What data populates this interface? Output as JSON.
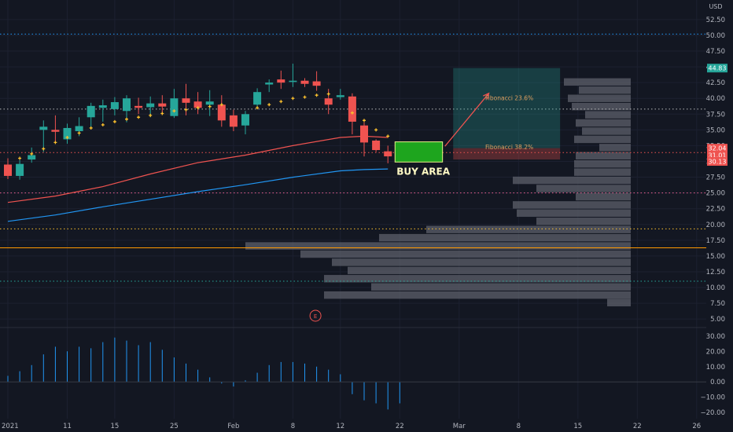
{
  "chart_data": {
    "type": "candlestick",
    "currency_label": "USD",
    "price_axis": {
      "range": [
        3.9,
        55.6
      ],
      "ticks": [
        "52.50",
        "50.00",
        "47.50",
        "45.00",
        "42.50",
        "40.00",
        "37.50",
        "35.00",
        "32.50",
        "30.00",
        "27.50",
        "25.00",
        "22.50",
        "20.00",
        "17.50",
        "15.00",
        "12.50",
        "10.00",
        "7.50",
        "5.00"
      ]
    },
    "time_axis": {
      "labels": [
        {
          "t": 0,
          "label": "2021"
        },
        {
          "t": 5,
          "label": "11"
        },
        {
          "t": 9,
          "label": "15"
        },
        {
          "t": 14,
          "label": "25"
        },
        {
          "t": 19,
          "label": "Feb"
        },
        {
          "t": 24,
          "label": "8"
        },
        {
          "t": 28,
          "label": "12"
        },
        {
          "t": 33,
          "label": "22"
        },
        {
          "t": 38,
          "label": "Mar"
        },
        {
          "t": 43,
          "label": "8"
        },
        {
          "t": 48,
          "label": "15"
        },
        {
          "t": 53,
          "label": "22"
        },
        {
          "t": 58,
          "label": "26"
        }
      ]
    },
    "candles": [
      {
        "t": 0,
        "o": 29.5,
        "h": 30.5,
        "l": 27.2,
        "c": 27.7
      },
      {
        "t": 1,
        "o": 27.7,
        "h": 30.2,
        "l": 27.1,
        "c": 29.6
      },
      {
        "t": 2,
        "o": 30.3,
        "h": 32.2,
        "l": 29.8,
        "c": 31.0
      },
      {
        "t": 3,
        "o": 35.0,
        "h": 36.5,
        "l": 31.5,
        "c": 35.5
      },
      {
        "t": 4,
        "o": 35.0,
        "h": 37.3,
        "l": 33.0,
        "c": 34.7
      },
      {
        "t": 5,
        "o": 33.5,
        "h": 36.0,
        "l": 32.8,
        "c": 35.3
      },
      {
        "t": 6,
        "o": 34.8,
        "h": 37.0,
        "l": 34.0,
        "c": 35.6
      },
      {
        "t": 7,
        "o": 37.0,
        "h": 39.3,
        "l": 35.2,
        "c": 38.8
      },
      {
        "t": 8,
        "o": 38.5,
        "h": 39.8,
        "l": 36.3,
        "c": 38.9
      },
      {
        "t": 9,
        "o": 38.3,
        "h": 40.2,
        "l": 37.3,
        "c": 39.4
      },
      {
        "t": 10,
        "o": 38.0,
        "h": 40.5,
        "l": 36.2,
        "c": 40.0
      },
      {
        "t": 11,
        "o": 38.8,
        "h": 40.1,
        "l": 37.5,
        "c": 38.5
      },
      {
        "t": 12,
        "o": 38.6,
        "h": 40.3,
        "l": 37.0,
        "c": 39.2
      },
      {
        "t": 13,
        "o": 39.2,
        "h": 40.5,
        "l": 37.4,
        "c": 38.7
      },
      {
        "t": 14,
        "o": 37.2,
        "h": 41.5,
        "l": 36.9,
        "c": 40.0
      },
      {
        "t": 15,
        "o": 40.0,
        "h": 42.3,
        "l": 37.3,
        "c": 39.3
      },
      {
        "t": 16,
        "o": 39.5,
        "h": 41.0,
        "l": 37.5,
        "c": 38.5
      },
      {
        "t": 17,
        "o": 39.0,
        "h": 41.3,
        "l": 37.2,
        "c": 39.5
      },
      {
        "t": 18,
        "o": 39.0,
        "h": 40.5,
        "l": 35.5,
        "c": 36.5
      },
      {
        "t": 19,
        "o": 37.3,
        "h": 38.2,
        "l": 34.8,
        "c": 35.5
      },
      {
        "t": 20,
        "o": 35.7,
        "h": 38.0,
        "l": 34.3,
        "c": 37.5
      },
      {
        "t": 21,
        "o": 39.0,
        "h": 41.6,
        "l": 38.4,
        "c": 41.0
      },
      {
        "t": 22,
        "o": 42.2,
        "h": 43.0,
        "l": 41.0,
        "c": 42.5
      },
      {
        "t": 23,
        "o": 43.0,
        "h": 44.4,
        "l": 41.5,
        "c": 42.5
      },
      {
        "t": 24,
        "o": 42.6,
        "h": 45.5,
        "l": 41.8,
        "c": 42.8
      },
      {
        "t": 25,
        "o": 42.8,
        "h": 43.2,
        "l": 41.8,
        "c": 42.3
      },
      {
        "t": 26,
        "o": 42.7,
        "h": 44.3,
        "l": 41.2,
        "c": 42.0
      },
      {
        "t": 27,
        "o": 40.0,
        "h": 41.5,
        "l": 37.5,
        "c": 39.0
      },
      {
        "t": 28,
        "o": 40.2,
        "h": 41.5,
        "l": 39.8,
        "c": 40.5
      },
      {
        "t": 29,
        "o": 40.3,
        "h": 40.8,
        "l": 34.3,
        "c": 36.3
      },
      {
        "t": 30,
        "o": 35.7,
        "h": 36.2,
        "l": 30.8,
        "c": 33.0
      },
      {
        "t": 31,
        "o": 33.3,
        "h": 33.5,
        "l": 31.5,
        "c": 31.8
      },
      {
        "t": 32,
        "o": 31.6,
        "h": 32.5,
        "l": 29.7,
        "c": 30.8
      },
      {
        "t": 33,
        "o": 32.0,
        "h": 32.7,
        "l": 31.9,
        "c": 32.1
      }
    ],
    "psar": [
      {
        "t": 1,
        "v": 30.5
      },
      {
        "t": 2,
        "v": 31.2
      },
      {
        "t": 3,
        "v": 32.0
      },
      {
        "t": 4,
        "v": 33.0
      },
      {
        "t": 5,
        "v": 33.8
      },
      {
        "t": 6,
        "v": 34.5
      },
      {
        "t": 7,
        "v": 35.3
      },
      {
        "t": 8,
        "v": 35.8
      },
      {
        "t": 9,
        "v": 36.3
      },
      {
        "t": 10,
        "v": 36.7
      },
      {
        "t": 11,
        "v": 37.0
      },
      {
        "t": 12,
        "v": 37.3
      },
      {
        "t": 13,
        "v": 37.6
      },
      {
        "t": 14,
        "v": 38.0
      },
      {
        "t": 15,
        "v": 38.2
      },
      {
        "t": 16,
        "v": 38.5
      },
      {
        "t": 17,
        "v": 38.7
      },
      {
        "t": 18,
        "v": 39.0
      },
      {
        "t": 21,
        "v": 38.5
      },
      {
        "t": 22,
        "v": 39.0
      },
      {
        "t": 23,
        "v": 39.5
      },
      {
        "t": 24,
        "v": 40.0
      },
      {
        "t": 25,
        "v": 40.2
      },
      {
        "t": 26,
        "v": 40.5
      },
      {
        "t": 27,
        "v": 40.7
      },
      {
        "t": 29,
        "v": 37.7
      },
      {
        "t": 30,
        "v": 36.5
      },
      {
        "t": 31,
        "v": 35.0
      },
      {
        "t": 32,
        "v": 34.0
      }
    ],
    "sma_red": [
      [
        0,
        23.5
      ],
      [
        4,
        24.5
      ],
      [
        8,
        26.0
      ],
      [
        12,
        28.0
      ],
      [
        16,
        29.8
      ],
      [
        20,
        31.0
      ],
      [
        24,
        32.5
      ],
      [
        28,
        33.8
      ],
      [
        30,
        34.0
      ],
      [
        32,
        33.8
      ]
    ],
    "sma_blue": [
      [
        0,
        20.5
      ],
      [
        4,
        21.5
      ],
      [
        8,
        22.8
      ],
      [
        12,
        24.0
      ],
      [
        16,
        25.2
      ],
      [
        20,
        26.3
      ],
      [
        24,
        27.5
      ],
      [
        28,
        28.5
      ],
      [
        30,
        28.7
      ],
      [
        32,
        28.8
      ]
    ],
    "level_lines": [
      {
        "price": 50.2,
        "color": "#2196f3"
      },
      {
        "price": 38.3,
        "color": "#b8b8b8"
      },
      {
        "price": 31.4,
        "color": "#ef5350"
      },
      {
        "price": 25.0,
        "color": "#f06292"
      },
      {
        "price": 19.3,
        "color": "#fbc02d"
      },
      {
        "price": 16.3,
        "color": "#ff9800",
        "style": "solid"
      },
      {
        "price": 11.0,
        "color": "#26a69a"
      }
    ],
    "position": {
      "t_start": 37.5,
      "t_end": 46.5,
      "entry": 32.1,
      "target": 44.8,
      "stop": 30.3
    },
    "buy_zone": {
      "t_start": 32.6,
      "t_end": 36.6,
      "top": 33.1,
      "bottom": 29.9
    },
    "projection_arrow": {
      "from": [
        36.8,
        32.4
      ],
      "to": [
        40.5,
        40.8
      ]
    },
    "fib_labels": [
      {
        "label": "Fibonacci 23.6%",
        "t": 40.2,
        "price": 39.7
      },
      {
        "label": "Fibonacci 38.2%",
        "t": 40.2,
        "price": 31.9
      }
    ],
    "buy_label": "BUY AREA",
    "earnings_marker": "E",
    "price_badges": [
      {
        "value": "44.83",
        "price": 44.8,
        "color": "#26a69a"
      },
      {
        "value": "32.04",
        "price": 32.1,
        "color": "#ef5350"
      },
      {
        "value": "31.01",
        "price": 31.0,
        "color": "#ef5350"
      },
      {
        "value": "30.13",
        "price": 30.0,
        "color": "#ef5350"
      }
    ],
    "volume_profile": {
      "bin_size": 1.3,
      "bins": [
        {
          "price": 42.6,
          "w": 85
        },
        {
          "price": 41.3,
          "w": 66
        },
        {
          "price": 40.0,
          "w": 80
        },
        {
          "price": 38.7,
          "w": 75
        },
        {
          "price": 37.4,
          "w": 58
        },
        {
          "price": 36.1,
          "w": 70
        },
        {
          "price": 34.8,
          "w": 62
        },
        {
          "price": 33.5,
          "w": 72
        },
        {
          "price": 32.2,
          "w": 40
        },
        {
          "price": 30.9,
          "w": 70
        },
        {
          "price": 29.6,
          "w": 72
        },
        {
          "price": 28.3,
          "w": 72
        },
        {
          "price": 27.0,
          "w": 150
        },
        {
          "price": 25.7,
          "w": 120
        },
        {
          "price": 24.4,
          "w": 70
        },
        {
          "price": 23.1,
          "w": 150
        },
        {
          "price": 21.8,
          "w": 145
        },
        {
          "price": 20.5,
          "w": 120
        },
        {
          "price": 19.2,
          "w": 260
        },
        {
          "price": 17.9,
          "w": 320
        },
        {
          "price": 16.6,
          "w": 490
        },
        {
          "price": 15.3,
          "w": 420
        },
        {
          "price": 14.0,
          "w": 380
        },
        {
          "price": 12.7,
          "w": 360
        },
        {
          "price": 11.4,
          "w": 390
        },
        {
          "price": 10.1,
          "w": 330
        },
        {
          "price": 8.8,
          "w": 390
        },
        {
          "price": 7.6,
          "w": 30
        }
      ]
    },
    "macd_histogram": {
      "axis_ticks": [
        "30.00",
        "20.00",
        "10.00",
        "0.00",
        "−10.00",
        "−20.00"
      ],
      "range": [
        -24,
        34
      ],
      "values": [
        {
          "t": 0,
          "v": 4
        },
        {
          "t": 1,
          "v": 7
        },
        {
          "t": 2,
          "v": 11
        },
        {
          "t": 3,
          "v": 18
        },
        {
          "t": 4,
          "v": 23
        },
        {
          "t": 5,
          "v": 20
        },
        {
          "t": 6,
          "v": 23
        },
        {
          "t": 7,
          "v": 22
        },
        {
          "t": 8,
          "v": 26
        },
        {
          "t": 9,
          "v": 29
        },
        {
          "t": 10,
          "v": 27
        },
        {
          "t": 11,
          "v": 24
        },
        {
          "t": 12,
          "v": 26
        },
        {
          "t": 13,
          "v": 21
        },
        {
          "t": 14,
          "v": 16
        },
        {
          "t": 15,
          "v": 12
        },
        {
          "t": 16,
          "v": 8
        },
        {
          "t": 17,
          "v": 3
        },
        {
          "t": 18,
          "v": -1
        },
        {
          "t": 19,
          "v": -3
        },
        {
          "t": 20,
          "v": 1
        },
        {
          "t": 21,
          "v": 6
        },
        {
          "t": 22,
          "v": 11
        },
        {
          "t": 23,
          "v": 13
        },
        {
          "t": 24,
          "v": 13
        },
        {
          "t": 25,
          "v": 12
        },
        {
          "t": 26,
          "v": 10
        },
        {
          "t": 27,
          "v": 8
        },
        {
          "t": 28,
          "v": 5
        },
        {
          "t": 29,
          "v": -8
        },
        {
          "t": 30,
          "v": -12
        },
        {
          "t": 31,
          "v": -14
        },
        {
          "t": 32,
          "v": -18
        },
        {
          "t": 33,
          "v": -14
        }
      ]
    }
  }
}
